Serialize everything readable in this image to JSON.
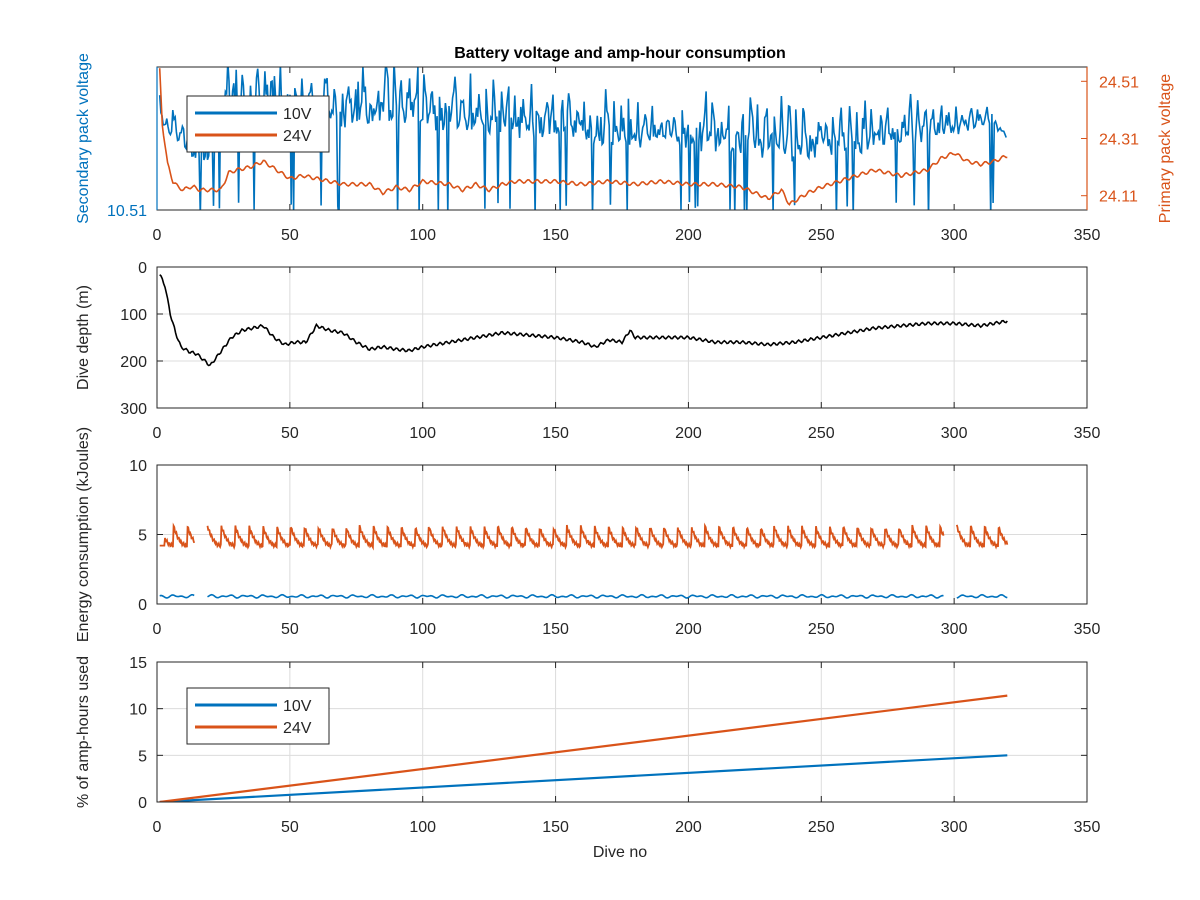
{
  "figure": {
    "title": "Battery voltage and amp-hour consumption",
    "xlabel_bottom": "Dive no"
  },
  "colors": {
    "blue": "#0072BD",
    "orange": "#D95319",
    "black": "#000000",
    "grid": "#dcdcdc",
    "axis": "#262626"
  },
  "chart_data": [
    {
      "type": "line",
      "title": "Battery voltage and amp-hour consumption",
      "xlabel": "",
      "xlim": [
        0,
        350
      ],
      "xticks": [
        0,
        50,
        100,
        150,
        200,
        250,
        300,
        350
      ],
      "ylabel_left": "Secondary pack voltage",
      "ylabel_right": "Primary pack voltage",
      "ylim_left": [
        10.51,
        10.6
      ],
      "yticks_left": [
        10.51
      ],
      "ylim_right": [
        24.06,
        24.56
      ],
      "yticks_right": [
        24.11,
        24.31,
        24.51
      ],
      "grid": false,
      "legend": {
        "position": "top-left",
        "entries": [
          "10V",
          "24V"
        ]
      },
      "series": [
        {
          "name": "10V",
          "axis": "left",
          "color": "#0072BD",
          "pattern": "oscillating",
          "x": [
            1,
            3,
            6,
            10,
            14,
            18,
            22,
            25,
            30,
            40,
            50,
            60,
            70,
            80,
            90,
            100,
            110,
            120,
            130,
            140,
            150,
            160,
            170,
            180,
            190,
            200,
            210,
            220,
            230,
            240,
            250,
            260,
            270,
            280,
            290,
            300,
            305,
            310,
            315,
            320
          ],
          "low": [
            10.555,
            10.553,
            10.54,
            10.53,
            10.522,
            10.512,
            10.525,
            10.535,
            10.548,
            10.55,
            10.552,
            10.545,
            10.542,
            10.54,
            10.545,
            10.54,
            10.543,
            10.542,
            10.538,
            10.535,
            10.54,
            10.535,
            10.532,
            10.53,
            10.532,
            10.53,
            10.528,
            10.526,
            10.522,
            10.52,
            10.524,
            10.528,
            10.53,
            10.535,
            10.54,
            10.545,
            10.55,
            10.552,
            10.555,
            10.553
          ],
          "high": [
            10.59,
            10.57,
            10.575,
            10.572,
            10.57,
            10.575,
            10.585,
            10.6,
            10.6,
            10.6,
            10.6,
            10.6,
            10.598,
            10.6,
            10.6,
            10.597,
            10.59,
            10.588,
            10.59,
            10.585,
            10.585,
            10.583,
            10.582,
            10.58,
            10.58,
            10.578,
            10.578,
            10.577,
            10.576,
            10.576,
            10.576,
            10.574,
            10.576,
            10.575,
            10.575,
            10.574,
            10.576,
            10.576,
            10.573,
            10.558
          ]
        },
        {
          "name": "24V",
          "axis": "right",
          "color": "#D95319",
          "x": [
            1,
            2,
            4,
            6,
            8,
            10,
            12,
            14,
            16,
            20,
            24,
            27,
            30,
            35,
            40,
            45,
            50,
            55,
            60,
            70,
            80,
            85,
            90,
            95,
            100,
            110,
            115,
            120,
            125,
            130,
            135,
            140,
            150,
            160,
            170,
            180,
            190,
            200,
            210,
            220,
            225,
            230,
            235,
            238,
            245,
            250,
            260,
            270,
            280,
            290,
            295,
            300,
            305,
            310,
            315,
            320
          ],
          "y": [
            24.55,
            24.36,
            24.22,
            24.16,
            24.14,
            24.13,
            24.14,
            24.14,
            24.13,
            24.13,
            24.13,
            24.19,
            24.2,
            24.21,
            24.23,
            24.2,
            24.17,
            24.18,
            24.17,
            24.15,
            24.15,
            24.12,
            24.14,
            24.13,
            24.16,
            24.15,
            24.13,
            24.15,
            24.13,
            24.15,
            24.16,
            24.16,
            24.16,
            24.15,
            24.16,
            24.15,
            24.16,
            24.15,
            24.15,
            24.14,
            24.12,
            24.1,
            24.13,
            24.08,
            24.12,
            24.14,
            24.17,
            24.2,
            24.18,
            24.2,
            24.24,
            24.26,
            24.23,
            24.22,
            24.23,
            24.25
          ]
        }
      ]
    },
    {
      "type": "line",
      "xlabel": "",
      "xlim": [
        0,
        350
      ],
      "xticks": [
        0,
        50,
        100,
        150,
        200,
        250,
        300,
        350
      ],
      "ylabel": "Dive depth (m)",
      "ylim": [
        0,
        300
      ],
      "yticks": [
        0,
        100,
        200,
        300
      ],
      "y_reversed": true,
      "grid": true,
      "series": [
        {
          "color": "#000000",
          "x": [
            1,
            3,
            5,
            7,
            9,
            12,
            15,
            18,
            20,
            24,
            28,
            32,
            36,
            40,
            44,
            48,
            52,
            56,
            60,
            65,
            70,
            75,
            80,
            85,
            90,
            95,
            100,
            110,
            120,
            130,
            140,
            150,
            160,
            165,
            170,
            175,
            178,
            180,
            190,
            200,
            210,
            220,
            230,
            240,
            250,
            260,
            270,
            280,
            290,
            300,
            310,
            320
          ],
          "y": [
            15,
            40,
            100,
            140,
            170,
            180,
            185,
            200,
            210,
            180,
            150,
            135,
            130,
            125,
            150,
            165,
            160,
            160,
            125,
            135,
            140,
            160,
            175,
            170,
            175,
            178,
            170,
            160,
            150,
            140,
            145,
            150,
            160,
            170,
            155,
            160,
            135,
            150,
            150,
            150,
            160,
            160,
            165,
            160,
            150,
            140,
            130,
            125,
            120,
            120,
            125,
            115
          ]
        }
      ]
    },
    {
      "type": "line",
      "xlabel": "",
      "xlim": [
        0,
        350
      ],
      "xticks": [
        0,
        50,
        100,
        150,
        200,
        250,
        300,
        350
      ],
      "ylabel": "Energy consumption (kJoules)",
      "ylim": [
        0,
        10
      ],
      "yticks": [
        0,
        5,
        10
      ],
      "grid": true,
      "series": [
        {
          "name": "24V",
          "color": "#D95319",
          "pattern": "sawtooth",
          "period": 5.2,
          "base": 4.2,
          "peak": 5.6,
          "segments": [
            [
              1,
              14
            ],
            [
              19,
              296
            ],
            [
              301,
              320
            ]
          ]
        },
        {
          "name": "10V",
          "color": "#0072BD",
          "pattern": "flat-noisy",
          "base": 0.55,
          "amplitude": 0.12,
          "segments": [
            [
              1,
              14
            ],
            [
              19,
              296
            ],
            [
              301,
              320
            ]
          ]
        }
      ]
    },
    {
      "type": "line",
      "xlabel": "Dive no",
      "xlim": [
        0,
        350
      ],
      "xticks": [
        0,
        50,
        100,
        150,
        200,
        250,
        300,
        350
      ],
      "ylabel": "% of amp-hours used",
      "ylim": [
        0,
        15
      ],
      "yticks": [
        0,
        5,
        10,
        15
      ],
      "grid": true,
      "legend": {
        "position": "top-left",
        "entries": [
          "10V",
          "24V"
        ]
      },
      "series": [
        {
          "name": "10V",
          "color": "#0072BD",
          "x": [
            1,
            320
          ],
          "y": [
            0,
            5.0
          ]
        },
        {
          "name": "24V",
          "color": "#D95319",
          "x": [
            1,
            320
          ],
          "y": [
            0,
            11.4
          ]
        }
      ]
    }
  ]
}
